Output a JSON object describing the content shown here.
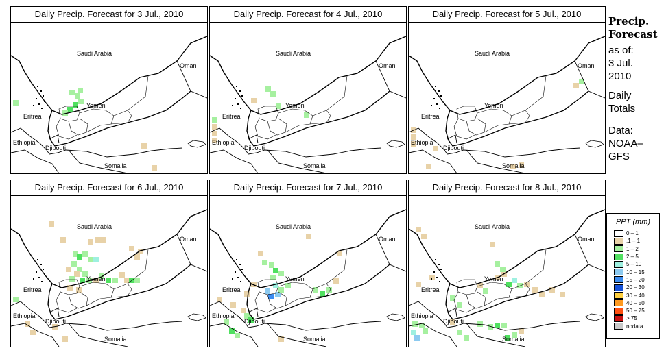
{
  "sidebar": {
    "title_line1": "Precip.",
    "title_line2": "Forecast",
    "asof": "as of:",
    "date_line1": "3 Jul.",
    "date_line2": "2010",
    "totals_line1": "Daily",
    "totals_line2": "Totals",
    "data_line1": "Data:",
    "data_line2": "NOAA–",
    "data_line3": "GFS"
  },
  "legend": {
    "title": "PPT (mm)",
    "items": [
      {
        "label": "0 – 1",
        "color": "#ffffff"
      },
      {
        "label": ".1 – 1",
        "color": "#e8d2a8"
      },
      {
        "label": "1 – 2",
        "color": "#a6f0a0"
      },
      {
        "label": "2 – 5",
        "color": "#50e060"
      },
      {
        "label": "5 – 10",
        "color": "#9ef0e0"
      },
      {
        "label": "10 – 15",
        "color": "#8ccaf0"
      },
      {
        "label": "15 – 20",
        "color": "#3c8cf0"
      },
      {
        "label": "20 – 30",
        "color": "#1450d8"
      },
      {
        "label": "30 – 40",
        "color": "#ffd040"
      },
      {
        "label": "40 – 50",
        "color": "#ff9a20"
      },
      {
        "label": "50 – 75",
        "color": "#ff5010"
      },
      {
        "label": "> 75",
        "color": "#c81010"
      },
      {
        "label": "nodata",
        "color": "#c8c8c8"
      }
    ]
  },
  "map_labels": {
    "saudi": "Saudi Arabia",
    "oman": "Oman",
    "yemen": "Yemen",
    "eritrea": "Eritrea",
    "ethiopia": "Ethiopia",
    "djibouti": "Djibouti",
    "somalia": "Somalia"
  },
  "panels": [
    {
      "title": "Daily Precip. Forecast for  3 Jul., 2010",
      "date": "3 Jul., 2010",
      "cells": [
        [
          "#a6f0a0",
          85,
          130
        ],
        [
          "#a6f0a0",
          93,
          135
        ],
        [
          "#a6f0a0",
          97,
          127
        ],
        [
          "#50e060",
          90,
          148
        ],
        [
          "#a6f0a0",
          98,
          143
        ],
        [
          "#50e060",
          82,
          155
        ],
        [
          "#a6f0a0",
          75,
          160
        ],
        [
          "#a6f0a0",
          3,
          145
        ],
        [
          "#e8d2a8",
          190,
          208
        ],
        [
          "#e8d2a8",
          205,
          240
        ]
      ]
    },
    {
      "title": "Daily Precip. Forecast for  4 Jul., 2010",
      "date": "4 Jul., 2010",
      "cells": [
        [
          "#e8d2a8",
          3,
          180
        ],
        [
          "#e8d2a8",
          3,
          190
        ],
        [
          "#e8d2a8",
          3,
          200
        ],
        [
          "#a6f0a0",
          3,
          170
        ],
        [
          "#a6f0a0",
          81,
          125
        ],
        [
          "#a6f0a0",
          88,
          132
        ],
        [
          "#a6f0a0",
          137,
          163
        ],
        [
          "#a6f0a0",
          96,
          150
        ],
        [
          "#e8d2a8",
          60,
          142
        ]
      ]
    },
    {
      "title": "Daily Precip. Forecast for  5 Jul., 2010",
      "date": "5 Jul., 2010",
      "cells": [
        [
          "#e8d2a8",
          3,
          185
        ],
        [
          "#e8d2a8",
          3,
          195
        ],
        [
          "#e8d2a8",
          3,
          205
        ],
        [
          "#e8d2a8",
          35,
          212
        ],
        [
          "#e8d2a8",
          25,
          238
        ],
        [
          "#e8d2a8",
          148,
          238
        ],
        [
          "#e8d2a8",
          160,
          236
        ],
        [
          "#e8d2a8",
          240,
          120
        ],
        [
          "#a6f0a0",
          248,
          114
        ]
      ]
    },
    {
      "title": "Daily Precip. Forecast for  6 Jul., 2010",
      "date": "6 Jul., 2010",
      "cells": [
        [
          "#e8d2a8",
          55,
          322
        ],
        [
          "#e8d2a8",
          72,
          345
        ],
        [
          "#e8d2a8",
          112,
          348
        ],
        [
          "#e8d2a8",
          122,
          345
        ],
        [
          "#e8d2a8",
          130,
          345
        ],
        [
          "#e8d2a8",
          172,
          358
        ],
        [
          "#e8d2a8",
          180,
          370
        ],
        [
          "#e8d2a8",
          185,
          362
        ],
        [
          "#a6f0a0",
          90,
          366
        ],
        [
          "#50e060",
          96,
          370
        ],
        [
          "#a6f0a0",
          104,
          366
        ],
        [
          "#a6f0a0",
          112,
          374
        ],
        [
          "#9ef0e0",
          120,
          374
        ],
        [
          "#a6f0a0",
          88,
          380
        ],
        [
          "#e8d2a8",
          80,
          388
        ],
        [
          "#a6f0a0",
          96,
          388
        ],
        [
          "#a6f0a0",
          104,
          395
        ],
        [
          "#e8d2a8",
          92,
          395
        ],
        [
          "#a6f0a0",
          85,
          402
        ],
        [
          "#50e060",
          100,
          404
        ],
        [
          "#a6f0a0",
          110,
          404
        ],
        [
          "#e8d2a8",
          120,
          404
        ],
        [
          "#a6f0a0",
          128,
          398
        ],
        [
          "#50e060",
          138,
          404
        ],
        [
          "#a6f0a0",
          148,
          404
        ],
        [
          "#e8d2a8",
          158,
          396
        ],
        [
          "#e8d2a8",
          165,
          404
        ],
        [
          "#50e060",
          172,
          404
        ],
        [
          "#a6f0a0",
          180,
          404
        ],
        [
          "#e8d2a8",
          82,
          415
        ],
        [
          "#e8d2a8",
          95,
          418
        ],
        [
          "#a6f0a0",
          3,
          432
        ],
        [
          "#e8d2a8",
          20,
          468
        ],
        [
          "#e8d2a8",
          28,
          480
        ],
        [
          "#e8d2a8",
          60,
          472
        ],
        [
          "#e8d2a8",
          75,
          490
        ]
      ]
    },
    {
      "title": "Daily Precip. Forecast for  7 Jul., 2010",
      "date": "7 Jul., 2010",
      "cells": [
        [
          "#e8d2a8",
          70,
          365
        ],
        [
          "#a6f0a0",
          76,
          378
        ],
        [
          "#a6f0a0",
          86,
          382
        ],
        [
          "#50e060",
          92,
          390
        ],
        [
          "#a6f0a0",
          100,
          394
        ],
        [
          "#a6f0a0",
          88,
          400
        ],
        [
          "#9ef0e0",
          92,
          412
        ],
        [
          "#8ccaf0",
          80,
          420
        ],
        [
          "#3c8cf0",
          85,
          428
        ],
        [
          "#8ccaf0",
          95,
          425
        ],
        [
          "#a6f0a0",
          100,
          418
        ],
        [
          "#a6f0a0",
          110,
          412
        ],
        [
          "#e8d2a8",
          60,
          410
        ],
        [
          "#e8d2a8",
          50,
          424
        ],
        [
          "#e8d2a8",
          45,
          448
        ],
        [
          "#e8d2a8",
          30,
          440
        ],
        [
          "#a6f0a0",
          50,
          456
        ],
        [
          "#50e060",
          56,
          462
        ],
        [
          "#a6f0a0",
          20,
          465
        ],
        [
          "#50e060",
          28,
          478
        ],
        [
          "#a6f0a0",
          36,
          485
        ],
        [
          "#e8d2a8",
          10,
          432
        ],
        [
          "#a6f0a0",
          150,
          418
        ],
        [
          "#50e060",
          160,
          424
        ],
        [
          "#a6f0a0",
          170,
          418
        ],
        [
          "#e8d2a8",
          180,
          405
        ],
        [
          "#e8d2a8",
          185,
          365
        ],
        [
          "#e8d2a8",
          140,
          340
        ],
        [
          "#e8d2a8",
          100,
          490
        ]
      ]
    },
    {
      "title": "Daily Precip. Forecast for  8 Jul., 2010",
      "date": "8 Jul., 2010",
      "cells": [
        [
          "#e8d2a8",
          10,
          330
        ],
        [
          "#e8d2a8",
          18,
          340
        ],
        [
          "#e8d2a8",
          118,
          352
        ],
        [
          "#e8d2a8",
          30,
          400
        ],
        [
          "#e8d2a8",
          10,
          410
        ],
        [
          "#e8d2a8",
          100,
          412
        ],
        [
          "#a6f0a0",
          108,
          420
        ],
        [
          "#e8d2a8",
          125,
          400
        ],
        [
          "#e8d2a8",
          135,
          395
        ],
        [
          "#50e060",
          142,
          410
        ],
        [
          "#9ef0e0",
          150,
          404
        ],
        [
          "#a6f0a0",
          158,
          412
        ],
        [
          "#e8d2a8",
          168,
          410
        ],
        [
          "#e8d2a8",
          180,
          418
        ],
        [
          "#e8d2a8",
          190,
          425
        ],
        [
          "#e8d2a8",
          205,
          418
        ],
        [
          "#e8d2a8",
          220,
          425
        ],
        [
          "#a6f0a0",
          125,
          380
        ],
        [
          "#a6f0a0",
          133,
          388
        ],
        [
          "#a6f0a0",
          60,
          430
        ],
        [
          "#a6f0a0",
          70,
          440
        ],
        [
          "#a6f0a0",
          5,
          468
        ],
        [
          "#a6f0a0",
          15,
          470
        ],
        [
          "#9ef0e0",
          3,
          480
        ],
        [
          "#8ccaf0",
          8,
          488
        ],
        [
          "#a6f0a0",
          20,
          478
        ],
        [
          "#a6f0a0",
          100,
          468
        ],
        [
          "#a6f0a0",
          115,
          472
        ],
        [
          "#50e060",
          125,
          470
        ],
        [
          "#a6f0a0",
          135,
          470
        ],
        [
          "#a6f0a0",
          70,
          480
        ],
        [
          "#a6f0a0",
          80,
          488
        ],
        [
          "#50e060",
          140,
          488
        ],
        [
          "#a6f0a0",
          150,
          484
        ],
        [
          "#e8d2a8",
          160,
          478
        ],
        [
          "#e8d2a8",
          60,
          465
        ]
      ]
    }
  ]
}
